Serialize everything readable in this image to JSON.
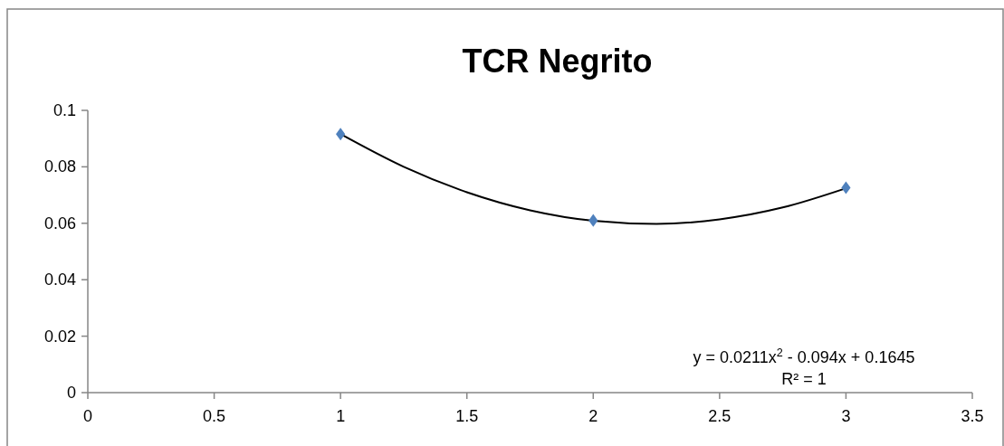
{
  "chart_data": {
    "type": "scatter",
    "title": "TCR Negrito",
    "series": [
      {
        "color": "#4f81bd",
        "marker": "diamond",
        "x": [
          1,
          2,
          3
        ],
        "values": [
          0.0916,
          0.061,
          0.0726
        ]
      },
      {
        "type": "line",
        "color": "#000000",
        "line_style": "solid",
        "x": [
          1,
          1.25,
          1.5,
          1.75,
          2,
          2.25,
          2.5,
          2.75,
          3
        ],
        "values": [
          0.0916,
          0.08,
          0.071,
          0.0646,
          0.0609,
          0.0598,
          0.0614,
          0.0656,
          0.0724
        ]
      }
    ],
    "xlim": [
      0,
      3.5
    ],
    "xticks": [
      0,
      0.5,
      1,
      1.5,
      2,
      2.5,
      3,
      3.5
    ],
    "ylim": [
      0,
      0.1
    ],
    "yticks": [
      0,
      0.02,
      0.04,
      0.06,
      0.08,
      0.1
    ],
    "grid": false,
    "annotations": [
      "y = 0.0211x$^{2}$ - 0.094x + 0.1645",
      "R² = 1"
    ]
  }
}
